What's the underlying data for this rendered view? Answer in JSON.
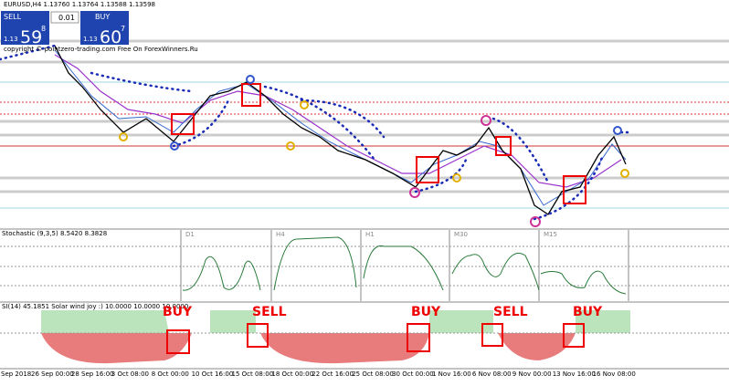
{
  "header": {
    "title": "EURUSD,H4 1.13760 1.13764 1.13588 1.13598"
  },
  "trade_panel": {
    "sell": "SELL",
    "buy": "BUY",
    "lot": "0.01",
    "sell_price": {
      "big": "1.13",
      "pips": "59",
      "point": "8"
    },
    "buy_price": {
      "big": "1.13",
      "pips": "60",
      "point": "7"
    }
  },
  "watermark": "copyright © pointzero-trading.com Free On ForexWinners.Ru",
  "stochastic": {
    "label": "Stochastic (9,3,5) 8.5420 8.3828",
    "timeframes": [
      "D1",
      "H4",
      "H1",
      "M30",
      "M15"
    ]
  },
  "oscillator": {
    "label": "SI(14) 45.1851  Solar wind joy :) 10.0000 10.0000 10.0000",
    "signals": [
      "BUY",
      "SELL",
      "BUY",
      "SELL",
      "BUY"
    ]
  },
  "time_axis": [
    "Sep 2018",
    "26 Sep 00:00",
    "28 Sep 16:00",
    "3 Oct 08:00",
    "8 Oct 00:00",
    "10 Oct 16:00",
    "15 Oct 08:00",
    "18 Oct 00:00",
    "22 Oct 16:00",
    "25 Oct 08:00",
    "30 Oct 00:00",
    "1 Nov 16:00",
    "6 Nov 08:00",
    "9 Nov 00:00",
    "13 Nov 16:00",
    "16 Nov 08:00"
  ]
}
